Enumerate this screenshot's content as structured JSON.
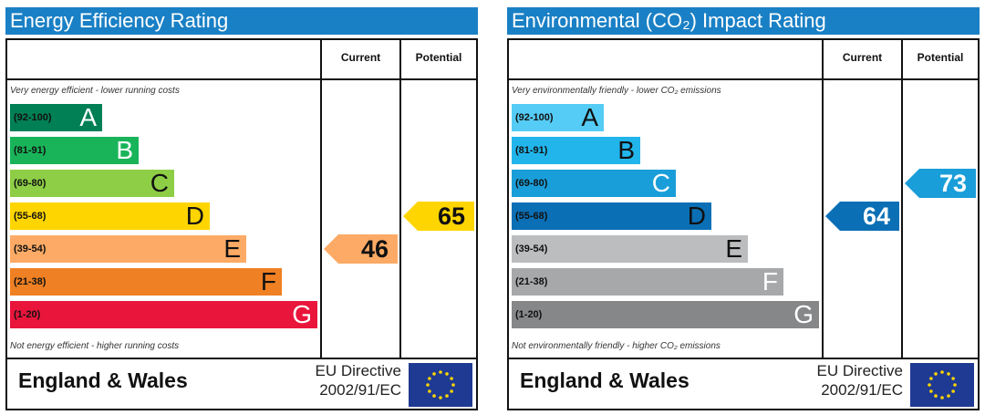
{
  "chart_data": [
    {
      "type": "bar",
      "title": "Energy Efficiency Rating",
      "columns": [
        "Current",
        "Potential"
      ],
      "top_caption": "Very energy efficient - lower running costs",
      "bottom_caption": "Not energy efficient - higher running costs",
      "bands": [
        {
          "range": "(92-100)",
          "letter": "A",
          "color": "#008054",
          "length": 0.18
        },
        {
          "range": "(81-91)",
          "letter": "B",
          "color": "#19b459",
          "length": 0.25
        },
        {
          "range": "(69-80)",
          "letter": "C",
          "color": "#8dce46",
          "length": 0.32
        },
        {
          "range": "(55-68)",
          "letter": "D",
          "color": "#ffd500",
          "length": 0.39
        },
        {
          "range": "(39-54)",
          "letter": "E",
          "color": "#fcaa65",
          "length": 0.46
        },
        {
          "range": "(21-38)",
          "letter": "F",
          "color": "#ef8023",
          "length": 0.53
        },
        {
          "range": "(1-20)",
          "letter": "G",
          "color": "#e9153b",
          "length": 0.6
        }
      ],
      "current": {
        "value": 46,
        "band": "E",
        "color": "#fcaa65"
      },
      "potential": {
        "value": 65,
        "band": "D",
        "color": "#ffd500"
      },
      "footer": {
        "region": "England & Wales",
        "directive_line1": "EU Directive",
        "directive_line2": "2002/91/EC"
      }
    },
    {
      "type": "bar",
      "title": "Environmental (CO₂) Impact Rating",
      "columns": [
        "Current",
        "Potential"
      ],
      "top_caption": "Very environmentally friendly - lower CO₂ emissions",
      "bottom_caption": "Not environmentally friendly - higher CO₂ emissions",
      "bands": [
        {
          "range": "(92-100)",
          "letter": "A",
          "color": "#55ccf5",
          "length": 0.18
        },
        {
          "range": "(81-91)",
          "letter": "B",
          "color": "#22b5eb",
          "length": 0.25
        },
        {
          "range": "(69-80)",
          "letter": "C",
          "color": "#1a9ed9",
          "length": 0.32
        },
        {
          "range": "(55-68)",
          "letter": "D",
          "color": "#0b6fb5",
          "length": 0.39
        },
        {
          "range": "(39-54)",
          "letter": "E",
          "color": "#bbbdbf",
          "length": 0.46
        },
        {
          "range": "(21-38)",
          "letter": "F",
          "color": "#a6a8aa",
          "length": 0.53
        },
        {
          "range": "(1-20)",
          "letter": "G",
          "color": "#858789",
          "length": 0.6
        }
      ],
      "current": {
        "value": 64,
        "band": "D",
        "color": "#0b6fb5"
      },
      "potential": {
        "value": 73,
        "band": "C",
        "color": "#1a9ed9"
      },
      "footer": {
        "region": "England & Wales",
        "directive_line1": "EU Directive",
        "directive_line2": "2002/91/EC"
      }
    }
  ]
}
